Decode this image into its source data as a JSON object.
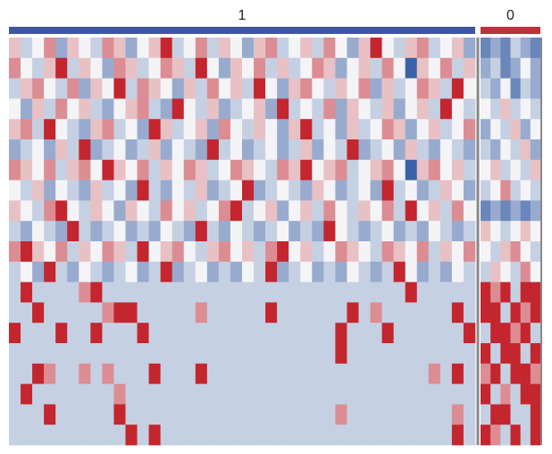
{
  "chart_data": {
    "type": "heatmap",
    "colors": [
      "#3b62a6",
      "#f4f4f7",
      "#c3262e"
    ],
    "zlim": [
      -4,
      4
    ],
    "groups": [
      {
        "name": "1",
        "color": "#3f56a3",
        "values": [
          [
            1,
            -1,
            0,
            2,
            -2,
            1,
            0,
            -1,
            2,
            1,
            -2,
            0,
            1,
            4,
            -1,
            0,
            2,
            -1,
            1,
            0,
            -2,
            1,
            2,
            -1,
            0,
            1,
            -1,
            2,
            0,
            -2,
            1,
            4,
            0,
            -1,
            1,
            2,
            -1,
            0,
            1,
            -2
          ],
          [
            2,
            0,
            -1,
            1,
            4,
            -1,
            1,
            0,
            -2,
            2,
            1,
            -1,
            0,
            2,
            1,
            -1,
            4,
            0,
            -2,
            1,
            0,
            2,
            -1,
            1,
            -1,
            0,
            2,
            1,
            -2,
            0,
            1,
            -1,
            2,
            0,
            -4,
            1,
            0,
            2,
            -1,
            1
          ],
          [
            -1,
            1,
            2,
            0,
            -1,
            2,
            -2,
            1,
            0,
            4,
            -1,
            2,
            1,
            0,
            -2,
            1,
            -1,
            2,
            0,
            1,
            -1,
            4,
            0,
            -2,
            1,
            2,
            0,
            -1,
            1,
            0,
            2,
            -2,
            1,
            -1,
            0,
            2,
            1,
            -1,
            4,
            0
          ],
          [
            0,
            -2,
            1,
            -1,
            2,
            0,
            1,
            -1,
            -2,
            0,
            1,
            2,
            -1,
            -2,
            4,
            0,
            -1,
            1,
            -2,
            -1,
            0,
            1,
            -2,
            4,
            -1,
            0,
            -1,
            2,
            -2,
            1,
            0,
            -1,
            1,
            -2,
            0,
            1,
            -1,
            4,
            0,
            -1
          ],
          [
            1,
            2,
            -1,
            4,
            0,
            -1,
            -2,
            1,
            2,
            -1,
            0,
            -2,
            4,
            1,
            -1,
            0,
            1,
            -2,
            2,
            0,
            -1,
            1,
            0,
            -2,
            1,
            4,
            -1,
            0,
            -2,
            1,
            -1,
            0,
            2,
            1,
            -2,
            0,
            1,
            -1,
            0,
            2
          ],
          [
            -2,
            -1,
            0,
            -2,
            1,
            -1,
            4,
            -2,
            -1,
            0,
            -2,
            -1,
            1,
            -2,
            0,
            -1,
            -2,
            4,
            -1,
            0,
            -2,
            -1,
            0,
            -2,
            -1,
            1,
            -2,
            0,
            -1,
            4,
            -2,
            -1,
            0,
            -2,
            1,
            -1,
            -2,
            0,
            -1,
            -2
          ],
          [
            2,
            1,
            0,
            2,
            -1,
            1,
            2,
            0,
            4,
            1,
            0,
            2,
            -1,
            1,
            0,
            2,
            1,
            -1,
            0,
            2,
            1,
            0,
            -1,
            2,
            1,
            4,
            0,
            1,
            2,
            -1,
            0,
            1,
            2,
            0,
            -4,
            1,
            2,
            0,
            1,
            -1
          ],
          [
            0,
            -1,
            1,
            -2,
            0,
            -1,
            -2,
            1,
            -1,
            0,
            -2,
            4,
            -1,
            -2,
            0,
            -1,
            1,
            -2,
            -1,
            0,
            4,
            -2,
            -1,
            0,
            -1,
            -2,
            1,
            0,
            -2,
            -1,
            0,
            -2,
            4,
            -1,
            0,
            -2,
            -1,
            1,
            0,
            -2
          ],
          [
            1,
            0,
            -1,
            2,
            4,
            0,
            -1,
            1,
            0,
            -2,
            1,
            0,
            -1,
            2,
            0,
            1,
            -1,
            0,
            2,
            4,
            -1,
            0,
            1,
            -2,
            0,
            1,
            -1,
            2,
            0,
            -1,
            1,
            0,
            2,
            -1,
            4,
            0,
            1,
            -1,
            2,
            0
          ],
          [
            -1,
            -2,
            0,
            -1,
            -2,
            4,
            -1,
            -2,
            -1,
            0,
            -2,
            -1,
            -2,
            0,
            -1,
            -2,
            4,
            -1,
            -2,
            0,
            -1,
            -2,
            -1,
            0,
            -2,
            -1,
            -2,
            4,
            0,
            -1,
            -2,
            -1,
            0,
            -2,
            -1,
            -2,
            0,
            -1,
            -2,
            -1
          ],
          [
            2,
            4,
            1,
            0,
            2,
            -1,
            1,
            0,
            2,
            1,
            -1,
            4,
            0,
            1,
            2,
            0,
            -1,
            1,
            2,
            0,
            1,
            -1,
            2,
            4,
            0,
            1,
            -1,
            0,
            2,
            1,
            0,
            -1,
            2,
            1,
            0,
            2,
            -1,
            1,
            0,
            2
          ],
          [
            -1,
            0,
            -2,
            4,
            -1,
            -2,
            0,
            -1,
            -2,
            -1,
            0,
            -2,
            -1,
            4,
            -2,
            -1,
            0,
            -2,
            -1,
            -2,
            0,
            -1,
            4,
            -2,
            -1,
            0,
            -2,
            -1,
            -2,
            0,
            -1,
            -2,
            -1,
            4,
            0,
            -2,
            -1,
            -2,
            0,
            -1
          ],
          [
            -1,
            4,
            -1,
            -1,
            -1,
            -1,
            2,
            4,
            -1,
            -1,
            -1,
            -1,
            -1,
            -1,
            -1,
            -1,
            -1,
            -1,
            -1,
            -1,
            -1,
            -1,
            -1,
            -1,
            -1,
            -1,
            -1,
            -1,
            -1,
            -1,
            -1,
            -1,
            -1,
            -1,
            4,
            -1,
            -1,
            -1,
            -1,
            -1
          ],
          [
            -1,
            -1,
            4,
            -1,
            -1,
            -1,
            -1,
            -1,
            2,
            4,
            4,
            -1,
            -1,
            -1,
            -1,
            -1,
            2,
            -1,
            -1,
            -1,
            -1,
            -1,
            4,
            -1,
            -1,
            -1,
            -1,
            -1,
            -1,
            4,
            -1,
            2,
            -1,
            -1,
            -1,
            -1,
            -1,
            -1,
            4,
            -1
          ],
          [
            4,
            -1,
            -1,
            -1,
            4,
            -1,
            -1,
            4,
            -1,
            -1,
            -1,
            4,
            -1,
            -1,
            -1,
            -1,
            -1,
            -1,
            -1,
            -1,
            -1,
            -1,
            -1,
            -1,
            -1,
            -1,
            -1,
            -1,
            4,
            -1,
            -1,
            -1,
            4,
            -1,
            -1,
            -1,
            -1,
            -1,
            -1,
            4
          ],
          [
            -1,
            -1,
            -1,
            -1,
            -1,
            -1,
            -1,
            -1,
            -1,
            -1,
            -1,
            -1,
            -1,
            -1,
            -1,
            -1,
            -1,
            -1,
            -1,
            -1,
            -1,
            -1,
            -1,
            -1,
            -1,
            -1,
            -1,
            -1,
            4,
            -1,
            -1,
            -1,
            -1,
            -1,
            -1,
            -1,
            -1,
            -1,
            -1,
            -1
          ],
          [
            -1,
            -1,
            4,
            2,
            -1,
            -1,
            2,
            -1,
            2,
            -1,
            -1,
            -1,
            4,
            -1,
            -1,
            -1,
            4,
            -1,
            -1,
            -1,
            -1,
            -1,
            -1,
            -1,
            -1,
            -1,
            -1,
            -1,
            -1,
            -1,
            -1,
            -1,
            -1,
            -1,
            -1,
            -1,
            2,
            -1,
            4,
            -1
          ],
          [
            -1,
            4,
            -1,
            -1,
            -1,
            -1,
            -1,
            -1,
            -1,
            2,
            -1,
            -1,
            -1,
            -1,
            -1,
            -1,
            -1,
            -1,
            -1,
            -1,
            -1,
            -1,
            -1,
            -1,
            -1,
            -1,
            -1,
            -1,
            -1,
            -1,
            -1,
            -1,
            -1,
            -1,
            -1,
            -1,
            -1,
            -1,
            -1,
            -1
          ],
          [
            -1,
            -1,
            -1,
            4,
            -1,
            -1,
            -1,
            -1,
            -1,
            4,
            -1,
            -1,
            -1,
            -1,
            -1,
            -1,
            -1,
            -1,
            -1,
            -1,
            -1,
            -1,
            -1,
            -1,
            -1,
            -1,
            -1,
            -1,
            2,
            -1,
            -1,
            -1,
            -1,
            -1,
            -1,
            -1,
            -1,
            -1,
            2,
            -1
          ],
          [
            -1,
            -1,
            -1,
            -1,
            -1,
            -1,
            -1,
            -1,
            -1,
            -1,
            4,
            -1,
            4,
            -1,
            -1,
            -1,
            -1,
            -1,
            -1,
            -1,
            -1,
            -1,
            -1,
            -1,
            -1,
            -1,
            -1,
            -1,
            -1,
            -1,
            -1,
            -1,
            -1,
            -1,
            -1,
            -1,
            -1,
            -1,
            4,
            -1
          ]
        ]
      },
      {
        "name": "0",
        "color": "#c0303a",
        "values": [
          [
            -3,
            -2,
            -3,
            -1,
            -2,
            -3
          ],
          [
            -2,
            -1,
            -3,
            -2,
            0,
            -2
          ],
          [
            -1,
            -2,
            0,
            -3,
            -1,
            -2
          ],
          [
            0,
            -1,
            1,
            -1,
            0,
            -1
          ],
          [
            -2,
            0,
            -1,
            1,
            -2,
            0
          ],
          [
            -1,
            -2,
            0,
            -1,
            1,
            -2
          ],
          [
            0,
            1,
            -1,
            0,
            -1,
            1
          ],
          [
            -1,
            0,
            2,
            -1,
            0,
            -1
          ],
          [
            -3,
            -2,
            -3,
            -2,
            -3,
            -2
          ],
          [
            1,
            0,
            -1,
            0,
            1,
            0
          ],
          [
            0,
            -1,
            1,
            2,
            0,
            -1
          ],
          [
            -1,
            1,
            0,
            -1,
            2,
            0
          ],
          [
            4,
            2,
            4,
            -1,
            4,
            4
          ],
          [
            4,
            4,
            -1,
            4,
            2,
            4
          ],
          [
            -1,
            4,
            4,
            2,
            4,
            -1
          ],
          [
            4,
            -1,
            4,
            4,
            -1,
            4
          ],
          [
            2,
            4,
            -1,
            4,
            4,
            2
          ],
          [
            4,
            -1,
            2,
            -1,
            4,
            4
          ],
          [
            -1,
            4,
            4,
            -1,
            -1,
            4
          ],
          [
            4,
            2,
            -1,
            4,
            -1,
            4
          ]
        ]
      }
    ]
  }
}
